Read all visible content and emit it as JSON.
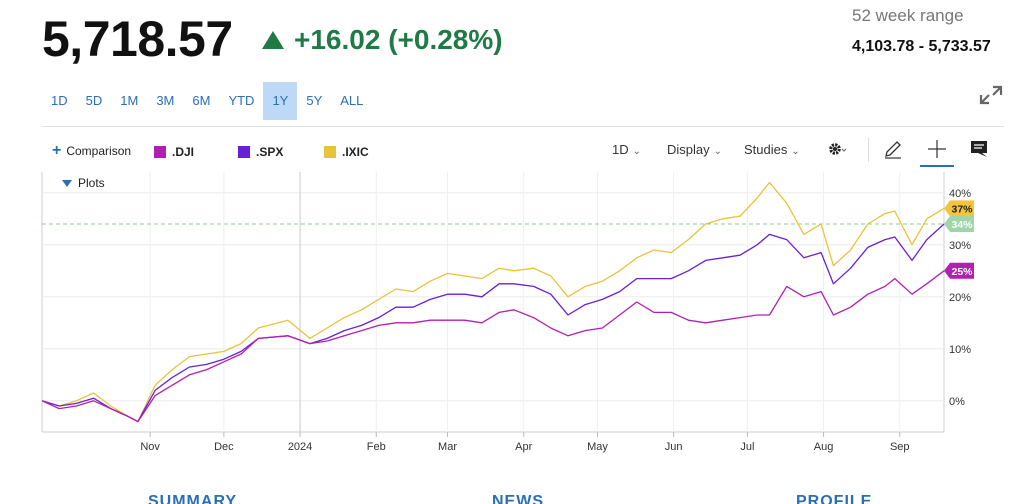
{
  "quote": {
    "price": "5,718.57",
    "change": "+16.02 (+0.28%)",
    "range_label": "52 week range",
    "range_value": "4,103.78 - 5,733.57",
    "colors": {
      "up": "#1f7a45"
    }
  },
  "periods": [
    {
      "label": "1D",
      "active": false
    },
    {
      "label": "5D",
      "active": false
    },
    {
      "label": "1M",
      "active": false
    },
    {
      "label": "3M",
      "active": false
    },
    {
      "label": "6M",
      "active": false
    },
    {
      "label": "YTD",
      "active": false
    },
    {
      "label": "1Y",
      "active": true
    },
    {
      "label": "5Y",
      "active": false
    },
    {
      "label": "ALL",
      "active": false
    }
  ],
  "toolbar": {
    "comparison_label": "Comparison",
    "legend": [
      {
        "label": ".DJI",
        "color": "#b31fb0"
      },
      {
        "label": ".SPX",
        "color": "#6a1fd6"
      },
      {
        "label": ".IXIC",
        "color": "#e8c43a"
      }
    ],
    "interval_label": "1D",
    "display_label": "Display",
    "studies_label": "Studies",
    "icons": [
      "settings-gear-icon",
      "pencil-icon",
      "crosshair-icon",
      "comment-icon"
    ],
    "plots_label": "Plots"
  },
  "bottom_tabs": [
    "SUMMARY",
    "NEWS",
    "PROFILE"
  ],
  "chart_data": {
    "type": "line",
    "x_axis": {
      "tick_labels": [
        "Nov",
        "Dec",
        "2024",
        "Feb",
        "Mar",
        "Apr",
        "May",
        "Jun",
        "Jul",
        "Aug",
        "Sep"
      ],
      "tick_dates": [
        "2023-11-01",
        "2023-12-01",
        "2024-01-01",
        "2024-02-01",
        "2024-03-01",
        "2024-04-01",
        "2024-05-01",
        "2024-06-01",
        "2024-07-01",
        "2024-08-01",
        "2024-09-01"
      ],
      "range": [
        "2023-09-18",
        "2024-09-19"
      ]
    },
    "y_axis": {
      "unit": "%",
      "tick_labels": [
        "0%",
        "10%",
        "20%",
        "30%",
        "40%"
      ],
      "ticks": [
        0,
        10,
        20,
        30,
        40
      ],
      "range": [
        -6,
        44
      ],
      "position": "right"
    },
    "reference_line": {
      "value": 34,
      "style": "dashed",
      "color": "#8fd18f"
    },
    "grid": true,
    "series": [
      {
        "name": ".IXIC",
        "color": "#e8c43a",
        "last_label": "37%",
        "points": [
          [
            "2023-09-18",
            0
          ],
          [
            "2023-09-25",
            -1
          ],
          [
            "2023-10-02",
            0
          ],
          [
            "2023-10-09",
            1.5
          ],
          [
            "2023-10-16",
            -1
          ],
          [
            "2023-10-23",
            -3
          ],
          [
            "2023-10-27",
            -4
          ],
          [
            "2023-11-03",
            3
          ],
          [
            "2023-11-10",
            6
          ],
          [
            "2023-11-17",
            8.5
          ],
          [
            "2023-11-24",
            9
          ],
          [
            "2023-12-01",
            9.5
          ],
          [
            "2023-12-08",
            11
          ],
          [
            "2023-12-15",
            14
          ],
          [
            "2023-12-27",
            15.5
          ],
          [
            "2024-01-05",
            12
          ],
          [
            "2024-01-12",
            14
          ],
          [
            "2024-01-19",
            16
          ],
          [
            "2024-01-26",
            17.5
          ],
          [
            "2024-02-02",
            19.5
          ],
          [
            "2024-02-09",
            21.5
          ],
          [
            "2024-02-16",
            21
          ],
          [
            "2024-02-23",
            23
          ],
          [
            "2024-03-01",
            24.5
          ],
          [
            "2024-03-08",
            24
          ],
          [
            "2024-03-15",
            23.5
          ],
          [
            "2024-03-22",
            25.5
          ],
          [
            "2024-03-28",
            25
          ],
          [
            "2024-04-05",
            25.5
          ],
          [
            "2024-04-12",
            24
          ],
          [
            "2024-04-19",
            20
          ],
          [
            "2024-04-26",
            22
          ],
          [
            "2024-05-03",
            23
          ],
          [
            "2024-05-10",
            25
          ],
          [
            "2024-05-17",
            27.5
          ],
          [
            "2024-05-24",
            29
          ],
          [
            "2024-05-31",
            28.5
          ],
          [
            "2024-06-07",
            31
          ],
          [
            "2024-06-14",
            34
          ],
          [
            "2024-06-21",
            35
          ],
          [
            "2024-06-28",
            35.5
          ],
          [
            "2024-07-05",
            39
          ],
          [
            "2024-07-10",
            42
          ],
          [
            "2024-07-17",
            38
          ],
          [
            "2024-07-24",
            32
          ],
          [
            "2024-07-31",
            34
          ],
          [
            "2024-08-05",
            26
          ],
          [
            "2024-08-12",
            29
          ],
          [
            "2024-08-19",
            34
          ],
          [
            "2024-08-26",
            36
          ],
          [
            "2024-08-30",
            36.5
          ],
          [
            "2024-09-06",
            30
          ],
          [
            "2024-09-12",
            35
          ],
          [
            "2024-09-19",
            37
          ]
        ]
      },
      {
        "name": ".SPX",
        "color": "#6a1fd6",
        "last_label": "34%",
        "points": [
          [
            "2023-09-18",
            0
          ],
          [
            "2023-09-25",
            -1
          ],
          [
            "2023-10-02",
            -0.5
          ],
          [
            "2023-10-09",
            0.5
          ],
          [
            "2023-10-16",
            -1.5
          ],
          [
            "2023-10-23",
            -3
          ],
          [
            "2023-10-27",
            -4
          ],
          [
            "2023-11-03",
            2
          ],
          [
            "2023-11-10",
            4.5
          ],
          [
            "2023-11-17",
            6.5
          ],
          [
            "2023-11-24",
            7
          ],
          [
            "2023-12-01",
            8
          ],
          [
            "2023-12-08",
            9.5
          ],
          [
            "2023-12-15",
            12
          ],
          [
            "2023-12-27",
            12.5
          ],
          [
            "2024-01-05",
            11
          ],
          [
            "2024-01-12",
            12
          ],
          [
            "2024-01-19",
            13.5
          ],
          [
            "2024-01-26",
            14.5
          ],
          [
            "2024-02-02",
            16
          ],
          [
            "2024-02-09",
            18
          ],
          [
            "2024-02-16",
            18
          ],
          [
            "2024-02-23",
            19.5
          ],
          [
            "2024-03-01",
            20.5
          ],
          [
            "2024-03-08",
            20.5
          ],
          [
            "2024-03-15",
            20
          ],
          [
            "2024-03-22",
            22.5
          ],
          [
            "2024-03-28",
            22.5
          ],
          [
            "2024-04-05",
            22
          ],
          [
            "2024-04-12",
            20.5
          ],
          [
            "2024-04-19",
            16.5
          ],
          [
            "2024-04-26",
            18.5
          ],
          [
            "2024-05-03",
            19.5
          ],
          [
            "2024-05-10",
            21
          ],
          [
            "2024-05-17",
            23.5
          ],
          [
            "2024-05-24",
            23.5
          ],
          [
            "2024-05-31",
            23.5
          ],
          [
            "2024-06-07",
            25
          ],
          [
            "2024-06-14",
            27
          ],
          [
            "2024-06-21",
            27.5
          ],
          [
            "2024-06-28",
            28
          ],
          [
            "2024-07-05",
            30
          ],
          [
            "2024-07-10",
            32
          ],
          [
            "2024-07-17",
            31
          ],
          [
            "2024-07-24",
            27.5
          ],
          [
            "2024-07-31",
            28.5
          ],
          [
            "2024-08-05",
            22.5
          ],
          [
            "2024-08-12",
            25.5
          ],
          [
            "2024-08-19",
            29.5
          ],
          [
            "2024-08-26",
            31
          ],
          [
            "2024-08-30",
            31.5
          ],
          [
            "2024-09-06",
            27
          ],
          [
            "2024-09-12",
            31
          ],
          [
            "2024-09-19",
            34
          ]
        ]
      },
      {
        "name": ".DJI",
        "color": "#b31fb0",
        "last_label": "25%",
        "points": [
          [
            "2023-09-18",
            0
          ],
          [
            "2023-09-25",
            -1.5
          ],
          [
            "2023-10-02",
            -1
          ],
          [
            "2023-10-09",
            0
          ],
          [
            "2023-10-16",
            -1.5
          ],
          [
            "2023-10-23",
            -3
          ],
          [
            "2023-10-27",
            -4
          ],
          [
            "2023-11-03",
            1
          ],
          [
            "2023-11-10",
            3
          ],
          [
            "2023-11-17",
            5
          ],
          [
            "2023-11-24",
            6
          ],
          [
            "2023-12-01",
            7.5
          ],
          [
            "2023-12-08",
            9
          ],
          [
            "2023-12-15",
            12
          ],
          [
            "2023-12-27",
            12.5
          ],
          [
            "2024-01-05",
            11
          ],
          [
            "2024-01-12",
            11.5
          ],
          [
            "2024-01-19",
            12.5
          ],
          [
            "2024-01-26",
            13.5
          ],
          [
            "2024-02-02",
            14.5
          ],
          [
            "2024-02-09",
            15
          ],
          [
            "2024-02-16",
            15
          ],
          [
            "2024-02-23",
            15.5
          ],
          [
            "2024-03-01",
            15.5
          ],
          [
            "2024-03-08",
            15.5
          ],
          [
            "2024-03-15",
            15
          ],
          [
            "2024-03-22",
            17
          ],
          [
            "2024-03-28",
            17.5
          ],
          [
            "2024-04-05",
            16
          ],
          [
            "2024-04-12",
            14
          ],
          [
            "2024-04-19",
            12.5
          ],
          [
            "2024-04-26",
            13.5
          ],
          [
            "2024-05-03",
            14
          ],
          [
            "2024-05-10",
            16.5
          ],
          [
            "2024-05-17",
            19
          ],
          [
            "2024-05-24",
            17
          ],
          [
            "2024-05-31",
            17
          ],
          [
            "2024-06-07",
            15.5
          ],
          [
            "2024-06-14",
            15
          ],
          [
            "2024-06-21",
            15.5
          ],
          [
            "2024-06-28",
            16
          ],
          [
            "2024-07-05",
            16.5
          ],
          [
            "2024-07-10",
            16.5
          ],
          [
            "2024-07-17",
            22
          ],
          [
            "2024-07-24",
            20
          ],
          [
            "2024-07-31",
            21
          ],
          [
            "2024-08-05",
            16.5
          ],
          [
            "2024-08-12",
            18
          ],
          [
            "2024-08-19",
            20.5
          ],
          [
            "2024-08-26",
            22
          ],
          [
            "2024-08-30",
            23.5
          ],
          [
            "2024-09-06",
            20.5
          ],
          [
            "2024-09-12",
            22.5
          ],
          [
            "2024-09-19",
            25
          ]
        ]
      }
    ]
  }
}
